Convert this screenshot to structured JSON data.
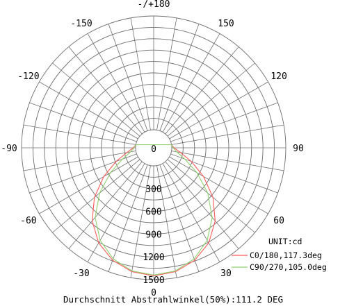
{
  "chart_data": {
    "type": "polar",
    "title": "",
    "unit_label": "UNIT:cd",
    "angle_labels": [
      "-/+180",
      "150",
      "120",
      "90",
      "60",
      "30",
      "0",
      "-30",
      "-60",
      "-90",
      "-120",
      "-150"
    ],
    "radial_ticks": [
      "0",
      "300",
      "600",
      "900",
      "1200",
      "1500"
    ],
    "radial_range": [
      0,
      1500
    ],
    "series": [
      {
        "name": "C0/180,117.3deg",
        "color": "#ff5a5a",
        "points": [
          {
            "angle": 0,
            "cd": 1450
          },
          {
            "angle": 10,
            "cd": 1420
          },
          {
            "angle": 20,
            "cd": 1340
          },
          {
            "angle": 30,
            "cd": 1210
          },
          {
            "angle": 40,
            "cd": 1020
          },
          {
            "angle": 50,
            "cd": 780
          },
          {
            "angle": 60,
            "cd": 520
          },
          {
            "angle": 70,
            "cd": 290
          },
          {
            "angle": 80,
            "cd": 120
          },
          {
            "angle": 90,
            "cd": 30
          },
          {
            "angle": 100,
            "cd": 0
          },
          {
            "angle": 260,
            "cd": 0
          },
          {
            "angle": 270,
            "cd": 30
          },
          {
            "angle": 280,
            "cd": 120
          },
          {
            "angle": 290,
            "cd": 290
          },
          {
            "angle": 300,
            "cd": 520
          },
          {
            "angle": 310,
            "cd": 780
          },
          {
            "angle": 320,
            "cd": 1020
          },
          {
            "angle": 330,
            "cd": 1210
          },
          {
            "angle": 340,
            "cd": 1340
          },
          {
            "angle": 350,
            "cd": 1420
          },
          {
            "angle": 360,
            "cd": 1450
          }
        ]
      },
      {
        "name": "C90/270,105.0deg",
        "color": "#8fd16e",
        "points": [
          {
            "angle": 0,
            "cd": 1440
          },
          {
            "angle": 10,
            "cd": 1410
          },
          {
            "angle": 20,
            "cd": 1320
          },
          {
            "angle": 30,
            "cd": 1170
          },
          {
            "angle": 40,
            "cd": 960
          },
          {
            "angle": 50,
            "cd": 690
          },
          {
            "angle": 60,
            "cd": 420
          },
          {
            "angle": 70,
            "cd": 200
          },
          {
            "angle": 80,
            "cd": 70
          },
          {
            "angle": 90,
            "cd": 20
          },
          {
            "angle": 100,
            "cd": 0
          },
          {
            "angle": 260,
            "cd": 0
          },
          {
            "angle": 270,
            "cd": 20
          },
          {
            "angle": 280,
            "cd": 70
          },
          {
            "angle": 290,
            "cd": 200
          },
          {
            "angle": 300,
            "cd": 420
          },
          {
            "angle": 310,
            "cd": 690
          },
          {
            "angle": 320,
            "cd": 960
          },
          {
            "angle": 330,
            "cd": 1170
          },
          {
            "angle": 340,
            "cd": 1320
          },
          {
            "angle": 350,
            "cd": 1410
          },
          {
            "angle": 360,
            "cd": 1440
          }
        ]
      }
    ],
    "caption": "Durchschnitt Abstrahlwinkel(50%):111.2 DEG",
    "grid": true
  }
}
